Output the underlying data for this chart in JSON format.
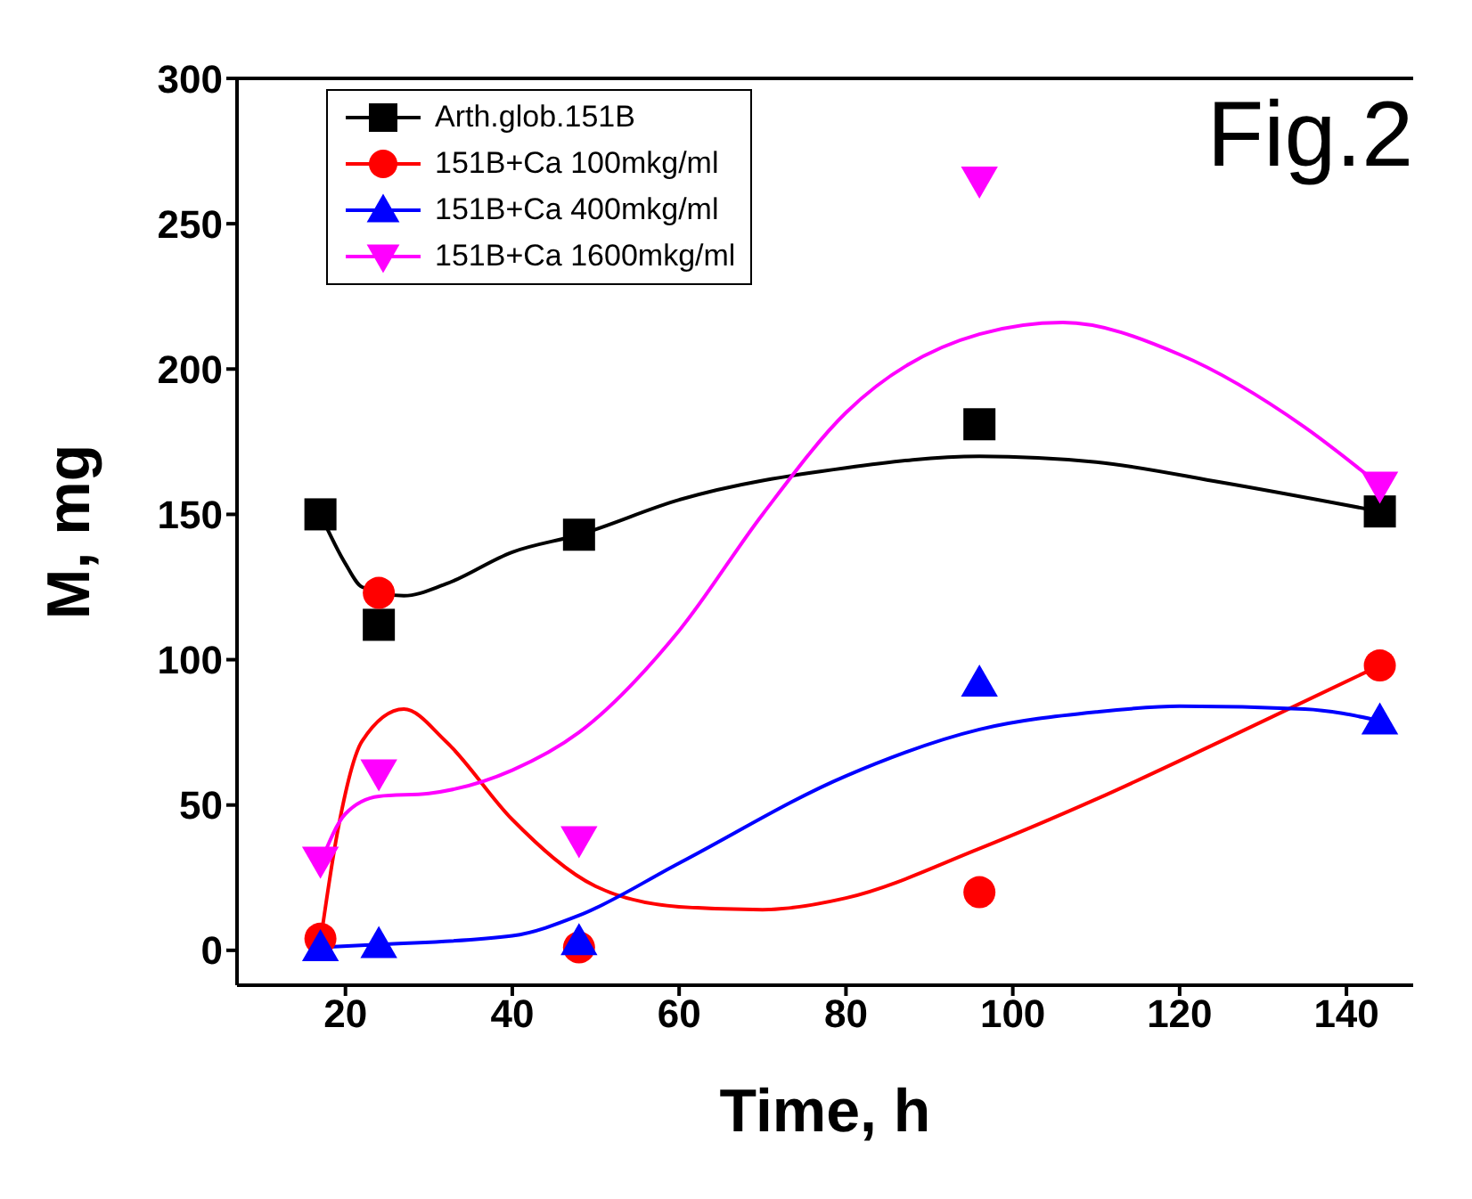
{
  "chart_data": {
    "type": "scatter",
    "xlabel": "Time, h",
    "ylabel": "M, mg",
    "annotations": [
      "Fig.2"
    ],
    "xlim": [
      7,
      148
    ],
    "ylim": [
      -12,
      300
    ],
    "xticks": [
      20,
      40,
      60,
      80,
      100,
      120,
      140
    ],
    "yticks": [
      0,
      50,
      100,
      150,
      200,
      250,
      300
    ],
    "legend": "top left",
    "x": [
      17,
      24,
      48,
      96,
      144
    ],
    "series": [
      {
        "name": "Arth.glob.151B",
        "color": "#000000",
        "marker": "square",
        "values": [
          150,
          112,
          143,
          181,
          151
        ]
      },
      {
        "name": "151B+Ca 100mkg/ml",
        "color": "#ff0000",
        "marker": "circle",
        "values": [
          4,
          123,
          1,
          20,
          98
        ]
      },
      {
        "name": "151B+Ca 400mkg/ml",
        "color": "#0000ff",
        "marker": "triangle",
        "values": [
          1,
          2,
          3,
          92,
          79
        ]
      },
      {
        "name": "151B+Ca 1600mkg/ml",
        "color": "#ff00ff",
        "marker": "triangle-down",
        "values": [
          31,
          61,
          38,
          265,
          160
        ]
      },
      {
        "type": "line",
        "color": "#000000",
        "marker": "none",
        "x": [
          17,
          20,
          22,
          27,
          32,
          40,
          48,
          60,
          80,
          96,
          110,
          125,
          144
        ],
        "values": [
          150,
          133,
          125,
          122,
          126,
          137,
          143,
          155,
          166,
          170,
          168,
          161,
          151
        ]
      },
      {
        "type": "line",
        "color": "#ff0000",
        "marker": "none",
        "x": [
          17,
          19,
          22,
          27,
          32,
          40,
          50,
          60,
          70,
          80,
          96,
          110,
          125,
          144
        ],
        "values": [
          3,
          40,
          72,
          83,
          72,
          45,
          22,
          15,
          14,
          18,
          35,
          52,
          72,
          98
        ]
      },
      {
        "type": "line",
        "color": "#0000ff",
        "marker": "none",
        "x": [
          17,
          24,
          40,
          48,
          60,
          80,
          96,
          110,
          120,
          135,
          144
        ],
        "values": [
          1,
          2,
          5,
          12,
          30,
          60,
          76,
          82,
          84,
          83,
          79
        ]
      },
      {
        "type": "line",
        "color": "#ff00ff",
        "marker": "none",
        "x": [
          17,
          20,
          24,
          30,
          40,
          48,
          60,
          70,
          80,
          96,
          106,
          120,
          135,
          144
        ],
        "values": [
          30,
          47,
          53,
          54,
          62,
          75,
          110,
          150,
          185,
          212,
          216,
          205,
          180,
          160
        ]
      }
    ]
  }
}
